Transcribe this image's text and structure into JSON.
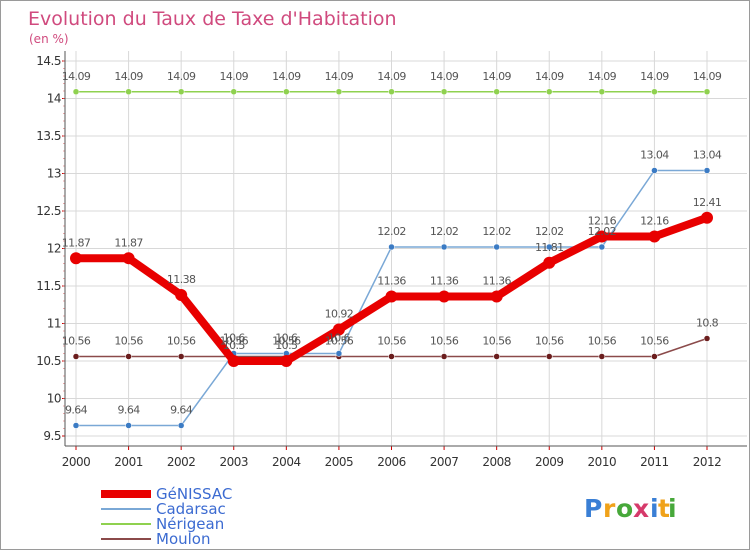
{
  "chart_data": {
    "type": "line",
    "title": "Evolution du Taux de Taxe d'Habitation",
    "subtitle": "(en %)",
    "xlabel": "",
    "ylabel": "",
    "ylim": [
      9.5,
      14.5
    ],
    "yticks": [
      "9.5",
      "10",
      "10.5",
      "11",
      "11.5",
      "12",
      "12.5",
      "13",
      "13.5",
      "14",
      "14.5"
    ],
    "categories": [
      "2000",
      "2001",
      "2002",
      "2003",
      "2004",
      "2005",
      "2006",
      "2007",
      "2008",
      "2009",
      "2010",
      "2011",
      "2012"
    ],
    "grid": true,
    "legend_position": "bottom-left",
    "series": [
      {
        "name": "Nérigean",
        "key": "nerigean",
        "color": "#8fd14f",
        "marker_fill": "#8fd14f",
        "width": 1.5,
        "marker": 3,
        "values": [
          14.09,
          14.09,
          14.09,
          14.09,
          14.09,
          14.09,
          14.09,
          14.09,
          14.09,
          14.09,
          14.09,
          14.09,
          14.09
        ],
        "labels": [
          "14.09",
          "14.09",
          "14.09",
          "14.09",
          "14.09",
          "14.09",
          "14.09",
          "14.09",
          "14.09",
          "14.09",
          "14.09",
          "14.09",
          "14.09"
        ]
      },
      {
        "name": "Moulon",
        "key": "moulon",
        "color": "#8b4a4a",
        "marker_fill": "#6b1d1d",
        "width": 1.5,
        "marker": 3,
        "values": [
          10.56,
          10.56,
          10.56,
          10.56,
          10.56,
          10.56,
          10.56,
          10.56,
          10.56,
          10.56,
          10.56,
          10.56,
          10.8
        ],
        "labels": [
          "10.56",
          "10.56",
          "10.56",
          "10.56",
          "10.56",
          "10.56",
          "10.56",
          "10.56",
          "10.56",
          "10.56",
          "10.56",
          "10.56",
          "10.8"
        ]
      },
      {
        "name": "Cadarsac",
        "key": "cadarsac",
        "color": "#7aa8d6",
        "marker_fill": "#3b7bc4",
        "width": 1.5,
        "marker": 3,
        "values": [
          9.64,
          9.64,
          9.64,
          10.6,
          10.6,
          10.6,
          12.02,
          12.02,
          12.02,
          12.02,
          12.02,
          13.04,
          13.04
        ],
        "labels": [
          "9.64",
          "9.64",
          "9.64",
          "10.6",
          "10.6",
          "10.6",
          "12.02",
          "12.02",
          "12.02",
          "12.02",
          "12.02",
          "13.04",
          "13.04"
        ]
      },
      {
        "name": "GéNISSAC",
        "key": "genissac",
        "color": "#e80000",
        "marker_fill": "#e80000",
        "width": 8,
        "marker": 6,
        "values": [
          11.87,
          11.87,
          11.38,
          10.5,
          10.5,
          10.92,
          11.36,
          11.36,
          11.36,
          11.81,
          12.16,
          12.16,
          12.41
        ],
        "labels": [
          "11.87",
          "11.87",
          "11.38",
          "10.5",
          "10.5",
          "10.92",
          "11.36",
          "11.36",
          "11.36",
          "11.81",
          "12.16",
          "12.16",
          "12.41"
        ]
      }
    ],
    "legend": [
      {
        "name": "GéNISSAC",
        "color": "#e80000",
        "width": 8
      },
      {
        "name": "Cadarsac",
        "color": "#7aa8d6",
        "width": 2
      },
      {
        "name": "Nérigean",
        "color": "#8fd14f",
        "width": 2
      },
      {
        "name": "Moulon",
        "color": "#8b4a4a",
        "width": 2
      }
    ]
  },
  "logo": {
    "letters": [
      "P",
      "r",
      "o",
      "x",
      "i",
      "t",
      "i"
    ],
    "colors": [
      "#3a7fd5",
      "#f0a21a",
      "#47a83a",
      "#d63a6b",
      "#3a7fd5",
      "#f0a21a",
      "#47a83a"
    ]
  }
}
